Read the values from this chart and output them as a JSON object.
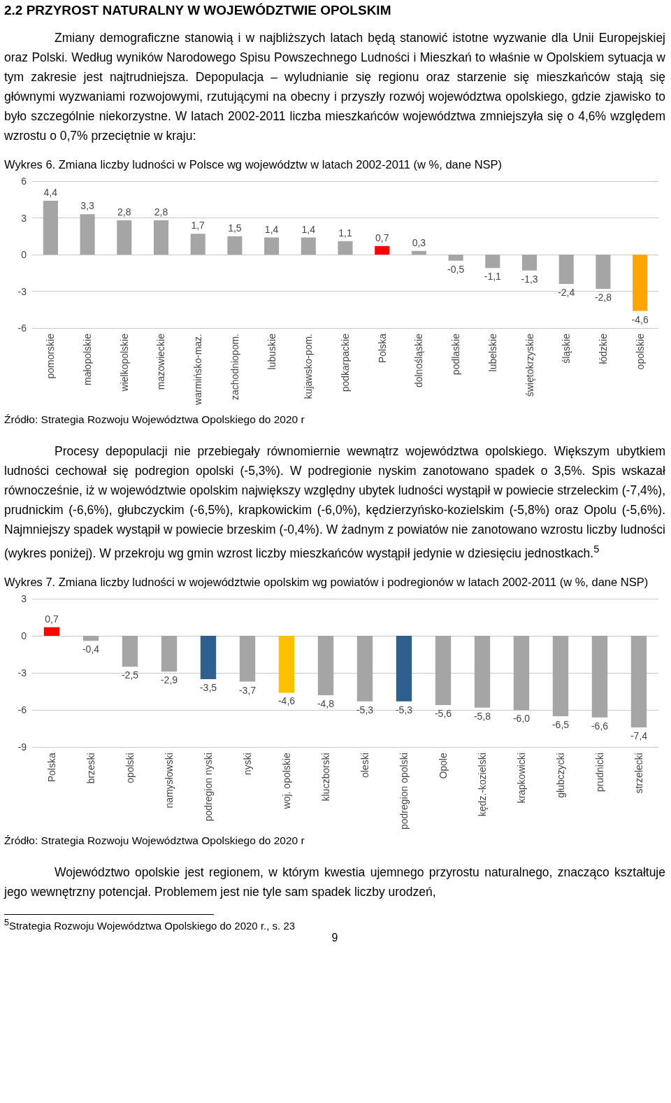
{
  "chart_data": [
    {
      "type": "other",
      "title": "2.2 PRZYROST NATURALNY W WOJEWÓDZTWIE OPOLSKIM",
      "annotations": [
        "Zmiany demograficzne stanowią i w najbliższych latach będą stanowić istotne wyzwanie dla Unii Europejskiej oraz Polski. Według wyników Narodowego Spisu Powszechnego Ludności i Mieszkań to właśnie w Opolskiem sytuacja w tym zakresie jest najtrudniejsza. Depopulacja – wyludnianie się regionu oraz starzenie się mieszkańców stają się głównymi wyzwaniami rozwojowymi, rzutującymi na obecny i przyszły rozwój województwa opolskiego, gdzie zjawisko to było szczególnie niekorzystne. W latach 2002-2011 liczba mieszkańców województwa zmniejszyła się o 4,6% względem wzrostu o 0,7% przeciętnie w kraju:"
      ]
    },
    {
      "type": "bar",
      "title": "Wykres 6. Zmiana liczby ludności w Polsce wg województw w latach 2002-2011 (w %, dane NSP)",
      "categories": [
        "pomorskie",
        "małopolskie",
        "wielkopolskie",
        "mazowieckie",
        "warmińsko-maz.",
        "zachodniopom.",
        "lubuskie",
        "kujawsko-pom.",
        "podkarpackie",
        "Polska",
        "dolnośląskie",
        "podlaskie",
        "lubelskie",
        "świętokrzyskie",
        "śląskie",
        "łódzkie",
        "opolskie"
      ],
      "values": [
        4.4,
        3.3,
        2.8,
        2.8,
        1.7,
        1.5,
        1.4,
        1.4,
        1.1,
        0.7,
        0.3,
        -0.5,
        -1.1,
        -1.3,
        -2.4,
        -2.8,
        -4.6
      ],
      "value_labels": [
        "4,4",
        "3,3",
        "2,8",
        "2,8",
        "1,7",
        "1,5",
        "1,4",
        "1,4",
        "1,1",
        "0,7",
        "0,3",
        "-0,5",
        "-1,1",
        "-1,3",
        "-2,4",
        "-2,8",
        "-4,6"
      ],
      "colors": [
        "#a5a5a5",
        "#a5a5a5",
        "#a5a5a5",
        "#a5a5a5",
        "#a5a5a5",
        "#a5a5a5",
        "#a5a5a5",
        "#a5a5a5",
        "#a5a5a5",
        "#ff0000",
        "#a5a5a5",
        "#a5a5a5",
        "#a5a5a5",
        "#a5a5a5",
        "#a5a5a5",
        "#a5a5a5",
        "#ffa500"
      ],
      "ylim": [
        -6,
        6
      ],
      "yticks": [
        -6,
        -3,
        0,
        3,
        6
      ],
      "grid": "y",
      "annotations": [
        "Źródło: Strategia Rozwoju Województwa Opolskiego do 2020 r"
      ]
    },
    {
      "type": "other",
      "annotations": [
        "Procesy depopulacji nie przebiegały równomiernie wewnątrz województwa opolskiego. Większym ubytkiem ludności cechował się podregion opolski (-5,3%). W podregionie nyskim zanotowano spadek o 3,5%. Spis wskazał równocześnie, iż w województwie opolskim największy względny ubytek ludności wystąpił w powiecie strzeleckim (-7,4%), prudnickim (-6,6%), głubczyckim (-6,5%), krapkowickim (-6,0%), kędzierzyńsko-kozielskim (-5,8%) oraz Opolu (-5,6%). Najmniejszy spadek wystąpił w powiecie brzeskim (-0,4%). W żadnym z powiatów nie zanotowano wzrostu liczby ludności (wykres poniżej). W przekroju wg gmin wzrost liczby mieszkańców wystąpił jedynie w dziesięciu jednostkach.$^{5}$"
      ]
    },
    {
      "type": "bar",
      "title": "Wykres 7. Zmiana liczby ludności w województwie opolskim wg powiatów i podregionów w latach 2002-2011 (w %, dane NSP)",
      "categories": [
        "Polska",
        "brzeski",
        "opolski",
        "namysłowski",
        "podregion nyski",
        "nyski",
        "woj. opolskie",
        "kluczborski",
        "oleski",
        "podregion opolski",
        "Opole",
        "kędz.-kozielski",
        "krapkowicki",
        "głubczycki",
        "prudnicki",
        "strzelecki"
      ],
      "values": [
        0.7,
        -0.4,
        -2.5,
        -2.9,
        -3.5,
        -3.7,
        -4.6,
        -4.8,
        -5.3,
        -5.3,
        -5.6,
        -5.8,
        -6.0,
        -6.5,
        -6.6,
        -7.4
      ],
      "value_labels": [
        "0,7",
        "-0,4",
        "-2,5",
        "-2,9",
        "-3,5",
        "-3,7",
        "-4,6",
        "-4,8",
        "-5,3",
        "-5,3",
        "-5,6",
        "-5,8",
        "-6,0",
        "-6,5",
        "-6,6",
        "-7,4"
      ],
      "colors": [
        "#ff0000",
        "#a5a5a5",
        "#a5a5a5",
        "#a5a5a5",
        "#2f5f8f",
        "#a5a5a5",
        "#ffc000",
        "#a5a5a5",
        "#a5a5a5",
        "#2f5f8f",
        "#a5a5a5",
        "#a5a5a5",
        "#a5a5a5",
        "#a5a5a5",
        "#a5a5a5",
        "#a5a5a5"
      ],
      "ylim": [
        -9,
        3
      ],
      "yticks": [
        -9,
        -6,
        -3,
        0,
        3
      ],
      "grid": "y",
      "annotations": [
        "Źródło: Strategia Rozwoju Województwa Opolskiego do 2020 r"
      ]
    },
    {
      "type": "other",
      "annotations": [
        "Województwo opolskie jest regionem, w którym kwestia ujemnego przyrostu naturalnego, znacząco kształtuje jego wewnętrzny potencjał. Problemem jest nie tyle sam spadek liczby urodzeń,",
        "$^{5}$Strategia Rozwoju Województwa Opolskiego do 2020 r., s. 23",
        "9"
      ]
    }
  ]
}
